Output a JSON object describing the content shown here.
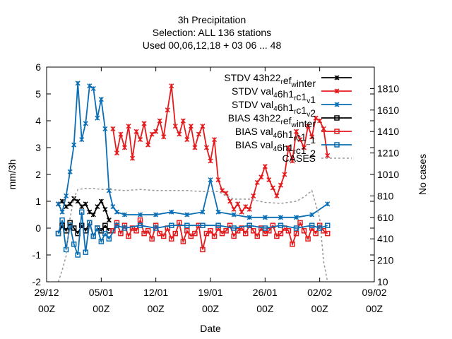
{
  "chart_data": {
    "type": "line",
    "title_lines": [
      "3h Precipitation",
      "Selection: ALL    136 stations",
      "Used  00,06,12,18  + 03 06 ... 48"
    ],
    "xlabel": "Date",
    "ylabel": "mm/3h",
    "y2label": "No cases",
    "x_ticks": [
      {
        "line1": "29/12",
        "line2": "00Z",
        "day": 0
      },
      {
        "line1": "05/01",
        "line2": "00Z",
        "day": 7
      },
      {
        "line1": "12/01",
        "line2": "00Z",
        "day": 14
      },
      {
        "line1": "19/01",
        "line2": "00Z",
        "day": 21
      },
      {
        "line1": "26/01",
        "line2": "00Z",
        "day": 28
      },
      {
        "line1": "02/02",
        "line2": "00Z",
        "day": 35
      },
      {
        "line1": "09/02",
        "line2": "00Z",
        "day": 42
      }
    ],
    "xlim_days": [
      0,
      42
    ],
    "ylim": [
      -2,
      6
    ],
    "y_ticks": [
      -2,
      -1,
      0,
      1,
      2,
      3,
      4,
      5,
      6
    ],
    "y2lim": [
      10,
      2010
    ],
    "y2_ticks": [
      10,
      210,
      410,
      610,
      810,
      1010,
      1210,
      1410,
      1610,
      1810
    ],
    "legend_position": "top-right",
    "series": [
      {
        "name": "STDV 43h22_ref_winter",
        "label_parts": [
          [
            "STDV 43h22",
            ""
          ],
          [
            "r",
            "sub"
          ],
          [
            "ef",
            ""
          ],
          [
            "w",
            "sub"
          ],
          [
            "inter",
            ""
          ]
        ],
        "color": "#000000",
        "marker": "x",
        "axis": "y1",
        "x": [
          1.5,
          2.0,
          2.5,
          3.0,
          3.5,
          4.0,
          4.5,
          5.0,
          5.5,
          6.0,
          6.5,
          7.0,
          7.5,
          8.0
        ],
        "y": [
          0.9,
          1.0,
          0.8,
          0.9,
          1.1,
          1.0,
          0.8,
          0.9,
          0.6,
          0.5,
          0.8,
          1.0,
          0.7,
          0.3
        ]
      },
      {
        "name": "STDV val_46h1_rc1_v1",
        "label_parts": [
          [
            "STDV val",
            ""
          ],
          [
            "4",
            "sub"
          ],
          [
            "6h1",
            ""
          ],
          [
            "r",
            "sub"
          ],
          [
            "c1",
            ""
          ],
          [
            "v",
            "sub"
          ],
          [
            "1",
            ""
          ]
        ],
        "color": "#e41a1c",
        "marker": "x",
        "axis": "y1",
        "x": [
          8.5,
          9.0,
          9.5,
          10.0,
          10.5,
          11.0,
          11.5,
          12.0,
          12.5,
          13.0,
          13.5,
          14.0,
          14.5,
          15.0,
          15.5,
          16.0,
          16.5,
          17.0,
          17.5,
          18.0,
          18.5,
          19.0,
          19.5,
          20.0,
          20.5,
          21.0,
          21.5,
          22.0,
          22.5,
          23.0,
          23.5,
          24.0,
          24.5,
          25.0,
          25.5,
          26.0,
          26.5,
          27.0,
          27.5,
          28.0,
          28.5,
          29.0,
          29.5,
          30.0,
          30.5,
          31.0,
          31.5,
          32.0,
          32.5,
          33.0,
          33.5,
          34.0,
          34.5,
          35.0,
          35.5,
          36.0
        ],
        "y": [
          3.7,
          2.8,
          3.5,
          3.0,
          3.8,
          2.6,
          3.6,
          3.3,
          3.9,
          3.1,
          3.5,
          3.6,
          4.0,
          3.4,
          4.4,
          5.3,
          3.8,
          3.5,
          4.0,
          3.3,
          3.8,
          3.0,
          3.5,
          3.8,
          3.0,
          2.5,
          3.3,
          1.8,
          1.4,
          1.3,
          1.0,
          0.7,
          0.9,
          0.6,
          0.8,
          0.7,
          1.2,
          1.7,
          1.9,
          2.3,
          1.8,
          1.5,
          1.2,
          1.6,
          2.0,
          3.0,
          2.5,
          3.6,
          3.3,
          3.0,
          3.8,
          3.4,
          4.1,
          4.0,
          3.7,
          2.7
        ]
      },
      {
        "name": "STDV val_46h1_rc1_v2",
        "label_parts": [
          [
            "STDV val",
            ""
          ],
          [
            "4",
            "sub"
          ],
          [
            "6h1",
            ""
          ],
          [
            "r",
            "sub"
          ],
          [
            "c1",
            ""
          ],
          [
            "v",
            "sub"
          ],
          [
            "2",
            ""
          ]
        ],
        "color": "#0a6eb4",
        "marker": "x",
        "axis": "y1",
        "x": [
          1.5,
          2.0,
          2.5,
          3.0,
          3.5,
          4.0,
          4.5,
          5.0,
          5.5,
          6.0,
          6.5,
          7.0,
          7.5,
          8.0,
          8.5,
          9.0,
          10.0,
          12.0,
          14.0,
          16.0,
          18.0,
          20.0,
          21.0,
          22.0,
          24.0,
          26.0,
          28.0,
          30.0,
          32.0,
          34.0,
          36.0
        ],
        "y": [
          0.9,
          0.6,
          1.2,
          2.1,
          3.1,
          5.4,
          3.3,
          3.9,
          5.3,
          5.2,
          4.1,
          4.8,
          3.7,
          1.4,
          0.8,
          0.6,
          0.5,
          0.5,
          0.5,
          0.6,
          0.5,
          0.6,
          1.8,
          0.6,
          0.5,
          0.4,
          0.4,
          0.4,
          0.4,
          0.5,
          0.9
        ]
      },
      {
        "name": "BIAS 43h22_ref_winter",
        "label_parts": [
          [
            "BIAS 43h22",
            ""
          ],
          [
            "r",
            "sub"
          ],
          [
            "ef",
            ""
          ],
          [
            "w",
            "sub"
          ],
          [
            "inter",
            ""
          ]
        ],
        "color": "#000000",
        "marker": "square",
        "axis": "y1",
        "x": [
          1.5,
          2.0,
          2.5,
          3.0,
          3.5,
          4.0,
          4.5,
          5.0,
          5.5,
          6.0,
          6.5,
          7.0,
          7.5,
          8.0
        ],
        "y": [
          -0.2,
          0.1,
          -0.1,
          0.2,
          0.0,
          -0.2,
          0.1,
          -0.1,
          0.2,
          -0.3,
          0.0,
          -0.1,
          0.1,
          -0.1
        ]
      },
      {
        "name": "BIAS val_46h1_rc1_1",
        "label_parts": [
          [
            "BIAS val",
            ""
          ],
          [
            "4",
            "sub"
          ],
          [
            "6h1",
            ""
          ],
          [
            "r",
            "sub"
          ],
          [
            "c1",
            ""
          ],
          [
            "_",
            "sub"
          ],
          [
            "1",
            ""
          ]
        ],
        "color": "#e41a1c",
        "marker": "square",
        "axis": "y1",
        "x": [
          8.5,
          9.0,
          9.5,
          10.0,
          10.5,
          11.0,
          11.5,
          12.0,
          12.5,
          13.0,
          13.5,
          14.0,
          14.5,
          15.0,
          15.5,
          16.0,
          16.5,
          17.0,
          17.5,
          18.0,
          18.5,
          19.0,
          19.5,
          20.0,
          20.5,
          21.0,
          21.5,
          22.0,
          22.5,
          23.0,
          23.5,
          24.0,
          24.5,
          25.0,
          25.5,
          26.0,
          26.5,
          27.0,
          27.5,
          28.0,
          28.5,
          29.0,
          29.5,
          30.0,
          30.5,
          31.0,
          31.5,
          32.0,
          32.5,
          33.0,
          33.5,
          34.0,
          34.5,
          35.0,
          35.5,
          36.0
        ],
        "y": [
          -0.1,
          0.2,
          -0.2,
          0.1,
          -0.3,
          0.0,
          -0.1,
          0.3,
          -0.2,
          -0.1,
          -0.4,
          0.1,
          -0.2,
          -0.3,
          0.0,
          -0.4,
          -0.2,
          0.2,
          -0.5,
          -0.1,
          -0.3,
          -0.2,
          0.1,
          -0.8,
          -0.2,
          -0.1,
          -0.3,
          0.0,
          -0.2,
          -0.1,
          0.1,
          -0.3,
          -0.1,
          0.0,
          -0.2,
          0.1,
          -0.1,
          -0.3,
          0.0,
          -0.2,
          -0.1,
          0.1,
          -0.3,
          -0.2,
          0.0,
          -0.1,
          -0.6,
          -0.2,
          0.2,
          -0.1,
          -0.4,
          0.0,
          -0.2,
          0.1,
          -0.1,
          -0.2
        ]
      },
      {
        "name": "BIAS val_46h1_rc1_2",
        "label_parts": [
          [
            "BIAS val",
            ""
          ],
          [
            "4",
            "sub"
          ],
          [
            "6h1",
            ""
          ],
          [
            "r",
            "sub"
          ],
          [
            "c1",
            ""
          ],
          [
            "_",
            "sub"
          ],
          [
            "2",
            ""
          ]
        ],
        "color": "#0a6eb4",
        "marker": "square",
        "axis": "y1",
        "x": [
          1.5,
          2.0,
          2.5,
          3.0,
          3.5,
          4.0,
          4.5,
          5.0,
          5.5,
          6.0,
          6.5,
          7.0,
          7.5,
          8.0,
          9.0,
          10.0,
          12.0,
          14.0,
          16.0,
          18.0,
          20.0,
          22.0,
          24.0,
          26.0,
          28.0,
          30.0,
          32.0,
          34.0,
          35.0,
          36.0
        ],
        "y": [
          -0.2,
          0.3,
          -0.8,
          0.1,
          -0.6,
          -1.0,
          0.6,
          -0.9,
          0.2,
          -0.3,
          0.0,
          -0.5,
          -0.2,
          -0.4,
          0.1,
          0.0,
          0.1,
          0.0,
          0.1,
          0.1,
          0.1,
          0.1,
          0.0,
          0.1,
          0.0,
          0.1,
          0.0,
          0.1,
          0.0,
          0.1
        ]
      },
      {
        "name": "CASES",
        "label_parts": [
          [
            "CASES",
            ""
          ]
        ],
        "color": "#999999",
        "marker": "none",
        "dashed": true,
        "axis": "y2",
        "x": [
          1.5,
          2.0,
          2.5,
          3.0,
          3.5,
          4.0,
          5.0,
          6.0,
          7.0,
          8.0,
          10.0,
          12.0,
          14.0,
          16.0,
          18.0,
          20.0,
          22.0,
          24.0,
          26.0,
          28.0,
          30.0,
          32.0,
          33.0,
          34.0,
          35.0,
          35.5,
          36.0
        ],
        "y": [
          10,
          120,
          250,
          600,
          790,
          870,
          880,
          880,
          870,
          870,
          860,
          870,
          860,
          860,
          860,
          850,
          850,
          780,
          780,
          750,
          740,
          760,
          800,
          860,
          600,
          200,
          10
        ]
      }
    ]
  }
}
